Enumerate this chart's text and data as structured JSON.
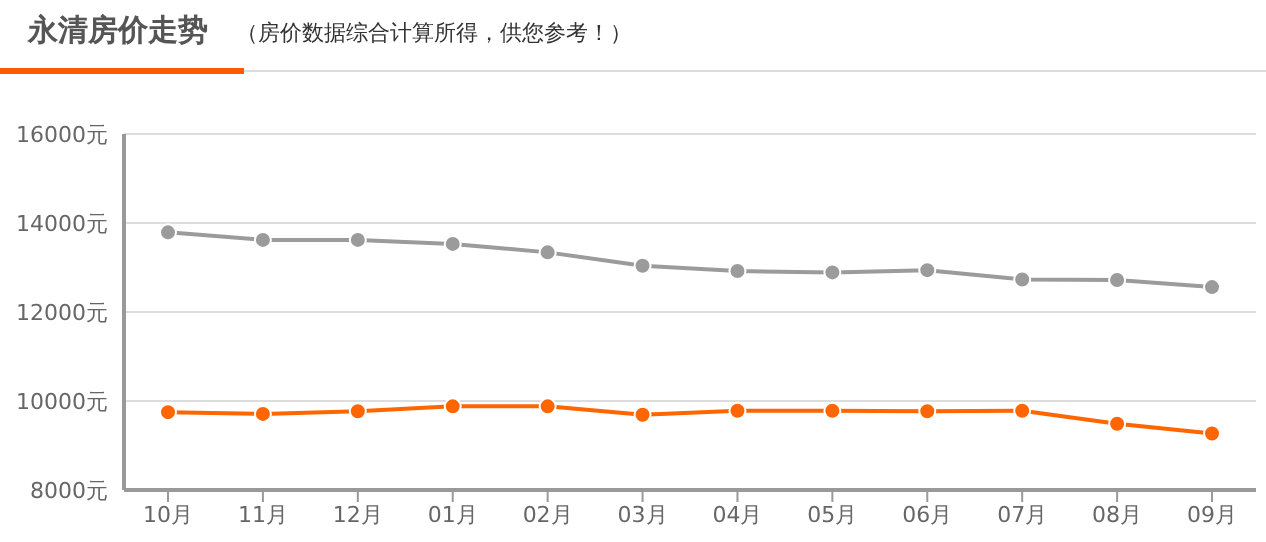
{
  "chart_data": {
    "type": "line",
    "title": "永清房价走势",
    "subtitle": "（房价数据综合计算所得，供您参考！）",
    "categories": [
      "10月",
      "11月",
      "12月",
      "01月",
      "02月",
      "03月",
      "04月",
      "05月",
      "06月",
      "07月",
      "08月",
      "09月"
    ],
    "series": [
      {
        "color": "#9b9b9b",
        "values": [
          13790,
          13620,
          13620,
          13530,
          13340,
          13040,
          12920,
          12890,
          12940,
          12730,
          12720,
          12560
        ]
      },
      {
        "color": "#ff6600",
        "values": [
          9750,
          9710,
          9770,
          9880,
          9880,
          9690,
          9780,
          9780,
          9770,
          9780,
          9490,
          9270
        ]
      }
    ],
    "ylim": [
      8000,
      16000
    ],
    "yticks": [
      {
        "value": 8000,
        "label": "8000元"
      },
      {
        "value": 10000,
        "label": "10000元"
      },
      {
        "value": 12000,
        "label": "12000元"
      },
      {
        "value": 14000,
        "label": "14000元"
      },
      {
        "value": 16000,
        "label": "16000元"
      }
    ],
    "grid": "y",
    "legend": false,
    "marker": "circle",
    "line_style": "solid"
  }
}
